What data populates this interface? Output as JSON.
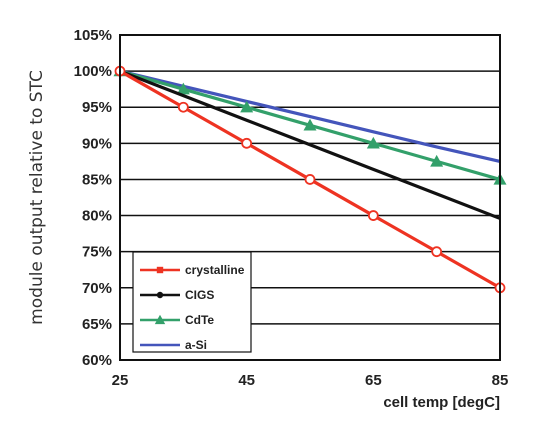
{
  "chart_data": {
    "type": "line",
    "xlabel": "cell temp [degC]",
    "ylabel": "module output relative to STC",
    "xlim": [
      25,
      85
    ],
    "ylim": [
      60,
      105
    ],
    "x_ticks": [
      25,
      45,
      65,
      85
    ],
    "y_ticks": [
      60,
      65,
      70,
      75,
      80,
      85,
      90,
      95,
      100,
      105
    ],
    "y_tick_labels": [
      "60%",
      "65%",
      "70%",
      "75%",
      "80%",
      "85%",
      "90%",
      "95%",
      "100%",
      "105%"
    ],
    "grid": "horizontal",
    "legend_position": "bottom-left",
    "series": [
      {
        "name": "crystalline",
        "color": "#ee3322",
        "marker": "circle",
        "x": [
          25,
          35,
          45,
          55,
          65,
          75,
          85
        ],
        "y": [
          100,
          95,
          90,
          85,
          80,
          75,
          70
        ]
      },
      {
        "name": "CIGS",
        "color": "#111111",
        "marker": "none",
        "x": [
          25,
          35,
          45,
          55,
          65,
          75,
          85
        ],
        "y": [
          100,
          96.6,
          93.2,
          89.8,
          86.4,
          83,
          79.6
        ]
      },
      {
        "name": "CdTe",
        "color": "#33a06a",
        "marker": "triangle",
        "x": [
          25,
          35,
          45,
          55,
          65,
          75,
          85
        ],
        "y": [
          100,
          97.5,
          95,
          92.5,
          90,
          87.5,
          85
        ]
      },
      {
        "name": "a-Si",
        "color": "#4455bb",
        "marker": "none",
        "x": [
          25,
          35,
          45,
          55,
          65,
          75,
          85
        ],
        "y": [
          100,
          97.9,
          95.8,
          93.7,
          91.6,
          89.5,
          87.5
        ]
      }
    ]
  }
}
